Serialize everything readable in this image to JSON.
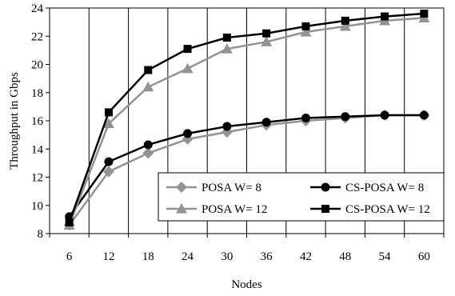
{
  "chart_data": {
    "type": "line",
    "title": "",
    "xlabel": "Nodes",
    "ylabel": "Throughput in Gbps",
    "x": [
      6,
      12,
      18,
      24,
      30,
      36,
      42,
      48,
      54,
      60
    ],
    "ylim": [
      8,
      24
    ],
    "yticks": [
      8,
      10,
      12,
      14,
      16,
      18,
      20,
      22,
      24
    ],
    "grid": "vertical",
    "legend_position": "bottom-right",
    "series": [
      {
        "name": "POSA W= 8",
        "marker": "diamond",
        "color": "#939393",
        "values": [
          8.6,
          12.4,
          13.7,
          14.7,
          15.2,
          15.7,
          16.0,
          16.2,
          16.4,
          16.4
        ]
      },
      {
        "name": "CS-POSA W= 8",
        "marker": "circle",
        "color": "#000000",
        "values": [
          9.2,
          13.1,
          14.3,
          15.1,
          15.6,
          15.9,
          16.2,
          16.3,
          16.4,
          16.4
        ]
      },
      {
        "name": "POSA W= 12",
        "marker": "triangle",
        "color": "#939393",
        "values": [
          8.6,
          15.8,
          18.4,
          19.7,
          21.1,
          21.6,
          22.3,
          22.7,
          23.1,
          23.3
        ]
      },
      {
        "name": "CS-POSA W= 12",
        "marker": "square",
        "color": "#000000",
        "values": [
          8.8,
          16.6,
          19.6,
          21.1,
          21.9,
          22.2,
          22.7,
          23.1,
          23.4,
          23.6
        ]
      }
    ]
  }
}
